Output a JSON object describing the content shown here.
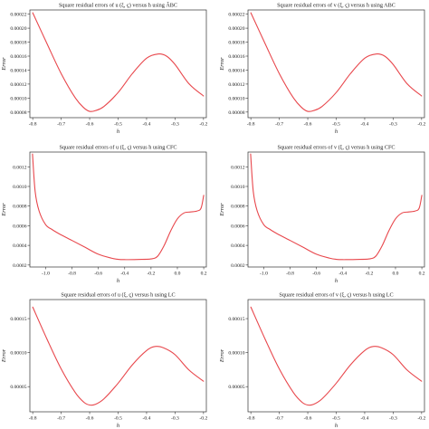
{
  "colors": {
    "curve": "#e8474c",
    "axis": "#333333"
  },
  "chart_data": [
    {
      "type": "line",
      "title": "Square residual errors of u (ξ, ç) versus h using ÂBC",
      "xlabel": "h",
      "ylabel": "Error",
      "xlim": [
        -0.81,
        -0.19
      ],
      "ylim": [
        7.2e-05,
        0.000226
      ],
      "xticks": [
        -0.8,
        -0.7,
        -0.6,
        -0.5,
        -0.4,
        -0.3,
        -0.2
      ],
      "xtick_labels": [
        "-0.8",
        "-0.7",
        "-0.6",
        "-0.5",
        "-0.4",
        "-0.3",
        "-0.2"
      ],
      "yticks": [
        8e-05,
        0.0001,
        0.00012,
        0.00014,
        0.00016,
        0.00018,
        0.0002,
        0.00022
      ],
      "ytick_labels": [
        "0.00008",
        "0.00010",
        "0.00012",
        "0.00014",
        "0.00016",
        "0.00018",
        "0.00020",
        "0.00022"
      ],
      "series": [
        {
          "x": [
            -0.8,
            -0.75,
            -0.7,
            -0.65,
            -0.62,
            -0.6,
            -0.58,
            -0.55,
            -0.5,
            -0.45,
            -0.4,
            -0.36,
            -0.33,
            -0.3,
            -0.25,
            -0.2
          ],
          "y": [
            0.000222,
            0.000178,
            0.000135,
            0.0001,
            8.6e-05,
            8.1e-05,
            8.2e-05,
            8.8e-05,
            0.000108,
            0.000135,
            0.000157,
            0.000163,
            0.00016,
            0.000148,
            0.00012,
            0.000103
          ]
        }
      ]
    },
    {
      "type": "line",
      "title": "Square residual errors of v (ξ, ç) versus h using ABC",
      "xlabel": "h",
      "ylabel": "Error",
      "xlim": [
        -0.81,
        -0.19
      ],
      "ylim": [
        7.2e-05,
        0.000226
      ],
      "xticks": [
        -0.8,
        -0.7,
        -0.6,
        -0.5,
        -0.4,
        -0.3,
        -0.2
      ],
      "xtick_labels": [
        "-0.8",
        "-0.7",
        "-0.6",
        "-0.5",
        "-0.4",
        "-0.3",
        "-0.2"
      ],
      "yticks": [
        8e-05,
        0.0001,
        0.00012,
        0.00014,
        0.00016,
        0.00018,
        0.0002,
        0.00022
      ],
      "ytick_labels": [
        "0.00008",
        "0.00010",
        "0.00012",
        "0.00014",
        "0.00016",
        "0.00018",
        "0.00020",
        "0.00022"
      ],
      "series": [
        {
          "x": [
            -0.8,
            -0.75,
            -0.7,
            -0.65,
            -0.62,
            -0.6,
            -0.58,
            -0.55,
            -0.5,
            -0.45,
            -0.4,
            -0.36,
            -0.33,
            -0.3,
            -0.25,
            -0.2
          ],
          "y": [
            0.000222,
            0.000178,
            0.000135,
            0.0001,
            8.6e-05,
            8.1e-05,
            8.2e-05,
            8.8e-05,
            0.000108,
            0.000135,
            0.000157,
            0.000163,
            0.00016,
            0.000148,
            0.00012,
            0.000103
          ]
        }
      ]
    },
    {
      "type": "line",
      "title": "Square residual errors of u (ξ, ç) versus h using CFC",
      "xlabel": "h",
      "ylabel": "Error",
      "xlim": [
        -1.12,
        0.22
      ],
      "ylim": [
        0.00018,
        0.00135
      ],
      "xticks": [
        -1.0,
        -0.8,
        -0.6,
        -0.4,
        -0.2,
        0.0,
        0.2
      ],
      "xtick_labels": [
        "-1.0",
        "-0.8",
        "-0.6",
        "-0.4",
        "-0.2",
        "0.0",
        "0.2"
      ],
      "yticks": [
        0.0002,
        0.0004,
        0.0006,
        0.0008,
        0.001,
        0.0012
      ],
      "ytick_labels": [
        "0.0002",
        "0.0004",
        "0.0006",
        "0.0008",
        "0.0010",
        "0.0012"
      ],
      "series": [
        {
          "x": [
            -1.1,
            -1.08,
            -1.05,
            -1.0,
            -0.95,
            -0.9,
            -0.8,
            -0.7,
            -0.6,
            -0.5,
            -0.45,
            -0.4,
            -0.3,
            -0.2,
            -0.15,
            -0.1,
            -0.05,
            0.0,
            0.05,
            0.1,
            0.15,
            0.18,
            0.2
          ],
          "y": [
            0.00133,
            0.00095,
            0.00075,
            0.00061,
            0.00056,
            0.00052,
            0.00045,
            0.00038,
            0.00031,
            0.00027,
            0.000258,
            0.000255,
            0.000257,
            0.000262,
            0.00029,
            0.0004,
            0.00055,
            0.00067,
            0.00073,
            0.00074,
            0.00075,
            0.00078,
            0.00091
          ]
        }
      ]
    },
    {
      "type": "line",
      "title": "Square residual errors of v (ξ, ç) versus h using CFC",
      "xlabel": "h",
      "ylabel": "Error",
      "xlim": [
        -1.12,
        0.22
      ],
      "ylim": [
        0.00018,
        0.00135
      ],
      "xticks": [
        -1.0,
        -0.8,
        -0.6,
        -0.4,
        -0.2,
        0.0,
        0.2
      ],
      "xtick_labels": [
        "-1.0",
        "-0.8",
        "-0.6",
        "-0.4",
        "-0.2",
        "0.0",
        "0.2"
      ],
      "yticks": [
        0.0002,
        0.0004,
        0.0006,
        0.0008,
        0.001,
        0.0012
      ],
      "ytick_labels": [
        "0.0002",
        "0.0004",
        "0.0006",
        "0.0008",
        "0.0010",
        "0.0012"
      ],
      "series": [
        {
          "x": [
            -1.1,
            -1.08,
            -1.05,
            -1.0,
            -0.95,
            -0.9,
            -0.8,
            -0.7,
            -0.6,
            -0.5,
            -0.45,
            -0.4,
            -0.3,
            -0.2,
            -0.15,
            -0.1,
            -0.05,
            0.0,
            0.05,
            0.1,
            0.15,
            0.18,
            0.2
          ],
          "y": [
            0.00133,
            0.00095,
            0.00075,
            0.00061,
            0.00056,
            0.00052,
            0.00045,
            0.00038,
            0.00031,
            0.00027,
            0.000258,
            0.000255,
            0.000257,
            0.000262,
            0.00029,
            0.0004,
            0.00055,
            0.00067,
            0.00073,
            0.00074,
            0.00075,
            0.00078,
            0.00091
          ]
        }
      ]
    },
    {
      "type": "line",
      "title": "Square residual errors of u (ξ, ç) versus h using LC",
      "xlabel": "h",
      "ylabel": "Error",
      "xlim": [
        -0.81,
        -0.19
      ],
      "ylim": [
        1.3e-05,
        0.000178
      ],
      "xticks": [
        -0.8,
        -0.7,
        -0.6,
        -0.5,
        -0.4,
        -0.3,
        -0.2
      ],
      "xtick_labels": [
        "-0.8",
        "-0.7",
        "-0.6",
        "-0.5",
        "-0.4",
        "-0.3",
        "-0.2"
      ],
      "yticks": [
        5e-05,
        0.0001,
        0.00015
      ],
      "ytick_labels": [
        "0.00005",
        "0.00010",
        "0.00015"
      ],
      "series": [
        {
          "x": [
            -0.8,
            -0.75,
            -0.7,
            -0.65,
            -0.62,
            -0.6,
            -0.58,
            -0.55,
            -0.5,
            -0.45,
            -0.4,
            -0.37,
            -0.34,
            -0.3,
            -0.25,
            -0.2
          ],
          "y": [
            0.000167,
            0.00012,
            7.6e-05,
            4.1e-05,
            2.7e-05,
            2.3e-05,
            2.4e-05,
            3.2e-05,
            5.5e-05,
            8.2e-05,
            0.000103,
            0.000109,
            0.000107,
            9.7e-05,
            7.4e-05,
            5.8e-05
          ]
        }
      ]
    },
    {
      "type": "line",
      "title": "Square residual errors of v (ξ, ç) versus h using LC",
      "xlabel": "h",
      "ylabel": "Error",
      "xlim": [
        -0.81,
        -0.19
      ],
      "ylim": [
        1.3e-05,
        0.000178
      ],
      "xticks": [
        -0.8,
        -0.7,
        -0.6,
        -0.5,
        -0.4,
        -0.3,
        -0.2
      ],
      "xtick_labels": [
        "-0.8",
        "-0.7",
        "-0.6",
        "-0.5",
        "-0.4",
        "-0.3",
        "-0.2"
      ],
      "yticks": [
        5e-05,
        0.0001,
        0.00015
      ],
      "ytick_labels": [
        "0.00005",
        "0.00010",
        "0.00015"
      ],
      "series": [
        {
          "x": [
            -0.8,
            -0.75,
            -0.7,
            -0.65,
            -0.62,
            -0.6,
            -0.58,
            -0.55,
            -0.5,
            -0.45,
            -0.4,
            -0.37,
            -0.34,
            -0.3,
            -0.25,
            -0.2
          ],
          "y": [
            0.000167,
            0.00012,
            7.6e-05,
            4.1e-05,
            2.7e-05,
            2.3e-05,
            2.4e-05,
            3.2e-05,
            5.5e-05,
            8.2e-05,
            0.000103,
            0.000109,
            0.000107,
            9.7e-05,
            7.4e-05,
            5.8e-05
          ]
        }
      ]
    }
  ]
}
